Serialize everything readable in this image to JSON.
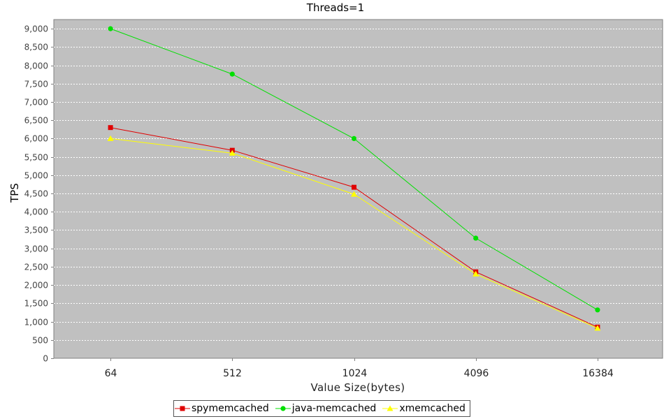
{
  "chart_data": {
    "type": "line",
    "title": "Threads=1",
    "xlabel": "Value Size(bytes)",
    "ylabel": "TPS",
    "categories": [
      "64",
      "512",
      "1024",
      "4096",
      "16384"
    ],
    "ylim": [
      0,
      9250
    ],
    "yticks": [
      0,
      500,
      1000,
      1500,
      2000,
      2500,
      3000,
      3500,
      4000,
      4500,
      5000,
      5500,
      6000,
      6500,
      7000,
      7500,
      8000,
      8500,
      9000
    ],
    "ytick_labels": [
      "0",
      "500",
      "1,000",
      "1,500",
      "2,000",
      "2,500",
      "3,000",
      "3,500",
      "4,000",
      "4,500",
      "5,000",
      "5,500",
      "6,000",
      "6,500",
      "7,000",
      "7,500",
      "8,000",
      "8,500",
      "9,000"
    ],
    "grid": true,
    "legend_position": "bottom",
    "plot_background": "#c0c0c0",
    "series": [
      {
        "name": "spymemcached",
        "marker": "square",
        "color": "#e00000",
        "values": [
          6300,
          5680,
          4670,
          2360,
          850
        ]
      },
      {
        "name": "java-memcached",
        "marker": "circle",
        "color": "#00e000",
        "values": [
          9000,
          7760,
          6000,
          3280,
          1320
        ]
      },
      {
        "name": "xmemcached",
        "marker": "triangle",
        "color": "#ffff00",
        "values": [
          6000,
          5600,
          4480,
          2300,
          820
        ]
      }
    ]
  }
}
